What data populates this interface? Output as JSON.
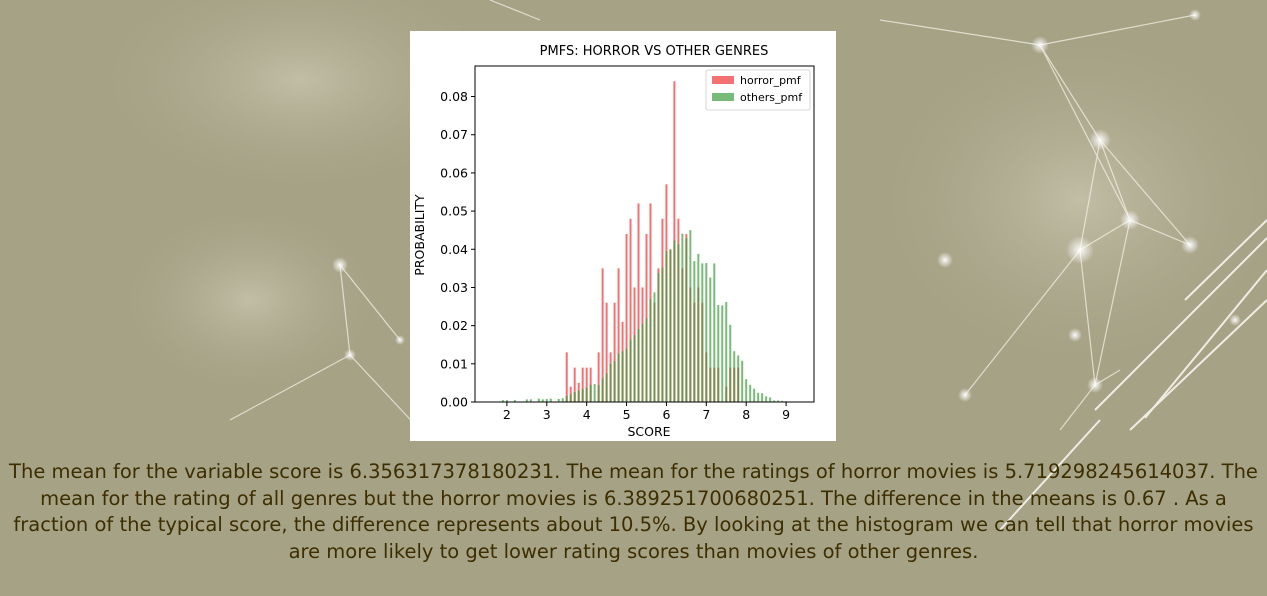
{
  "caption": "The mean for the variable score is 6.356317378180231. The mean for the ratings of horror movies is 5.719298245614037. The mean for the rating of all genres but the horror movies is 6.389251700680251. The difference in the means is 0.67 . As a fraction of the typical score, the difference represents about 10.5%. By looking at the histogram we can tell that horror movies are more likely to get lower rating scores than movies of other genres.",
  "colors": {
    "background": "#a6a286",
    "caption_text": "#3d2e00",
    "horror": "#f03434",
    "others": "#3f9e3f"
  },
  "chart_data": {
    "type": "bar",
    "title": "PMFS: HORROR VS OTHER GENRES",
    "xlabel": "SCORE",
    "ylabel": "PROBABILITY",
    "xlim": [
      1.2,
      9.7
    ],
    "ylim": [
      0,
      0.088
    ],
    "xticks": [
      2,
      3,
      4,
      5,
      6,
      7,
      8,
      9
    ],
    "yticks": [
      0.0,
      0.01,
      0.02,
      0.03,
      0.04,
      0.05,
      0.06,
      0.07,
      0.08
    ],
    "ytick_labels": [
      "0.00",
      "0.01",
      "0.02",
      "0.03",
      "0.04",
      "0.05",
      "0.06",
      "0.07",
      "0.08"
    ],
    "legend_position": "top-right",
    "bar_width": 0.05,
    "grid": false,
    "series": [
      {
        "name": "horror_pmf",
        "color": "#f03434",
        "x": [
          3.5,
          3.6,
          3.7,
          3.8,
          3.9,
          4.0,
          4.1,
          4.3,
          4.4,
          4.5,
          4.6,
          4.7,
          4.8,
          4.9,
          5.0,
          5.1,
          5.2,
          5.3,
          5.4,
          5.5,
          5.6,
          5.7,
          5.8,
          5.9,
          6.0,
          6.1,
          6.2,
          6.3,
          6.4,
          6.5,
          6.6,
          6.7,
          6.8,
          6.9,
          7.0,
          7.1,
          7.2,
          7.3,
          7.5,
          7.6,
          7.7,
          7.8
        ],
        "values": [
          0.013,
          0.004,
          0.009,
          0.005,
          0.009,
          0.009,
          0.009,
          0.013,
          0.035,
          0.026,
          0.013,
          0.026,
          0.035,
          0.021,
          0.044,
          0.048,
          0.03,
          0.052,
          0.03,
          0.044,
          0.052,
          0.026,
          0.035,
          0.048,
          0.057,
          0.04,
          0.084,
          0.048,
          0.035,
          0.044,
          0.03,
          0.026,
          0.03,
          0.026,
          0.013,
          0.009,
          0.009,
          0.009,
          0.004,
          0.009,
          0.009,
          0.009
        ]
      },
      {
        "name": "others_pmf",
        "color": "#3f9e3f",
        "x": [
          1.9,
          2.0,
          2.2,
          2.5,
          2.6,
          2.8,
          2.9,
          3.0,
          3.1,
          3.3,
          3.4,
          3.5,
          3.6,
          3.7,
          3.8,
          3.9,
          4.0,
          4.1,
          4.2,
          4.3,
          4.4,
          4.5,
          4.6,
          4.7,
          4.8,
          4.9,
          5.0,
          5.1,
          5.2,
          5.3,
          5.4,
          5.5,
          5.6,
          5.7,
          5.8,
          5.9,
          6.0,
          6.1,
          6.2,
          6.3,
          6.4,
          6.5,
          6.6,
          6.7,
          6.8,
          6.9,
          7.0,
          7.1,
          7.2,
          7.3,
          7.4,
          7.5,
          7.6,
          7.7,
          7.8,
          7.9,
          8.0,
          8.1,
          8.2,
          8.3,
          8.4,
          8.5,
          8.6,
          8.7,
          8.8,
          8.9,
          9.0
        ],
        "values": [
          0.0005,
          0.0005,
          0.0005,
          0.0007,
          0.0007,
          0.0009,
          0.0007,
          0.0008,
          0.0009,
          0.0008,
          0.001,
          0.0016,
          0.002,
          0.0026,
          0.003,
          0.0033,
          0.0038,
          0.0045,
          0.0047,
          0.0044,
          0.0062,
          0.0075,
          0.01,
          0.0107,
          0.0127,
          0.0133,
          0.014,
          0.0163,
          0.0175,
          0.0191,
          0.0205,
          0.0219,
          0.027,
          0.0287,
          0.0338,
          0.0352,
          0.0395,
          0.0399,
          0.0423,
          0.0413,
          0.0441,
          0.0429,
          0.045,
          0.0369,
          0.0388,
          0.0363,
          0.0364,
          0.0326,
          0.0363,
          0.0254,
          0.0253,
          0.0262,
          0.0202,
          0.0133,
          0.0122,
          0.0108,
          0.006,
          0.0045,
          0.0035,
          0.0024,
          0.0023,
          0.0015,
          0.0012,
          0.0004,
          0.0004,
          0.0003,
          0.0002
        ]
      }
    ]
  }
}
